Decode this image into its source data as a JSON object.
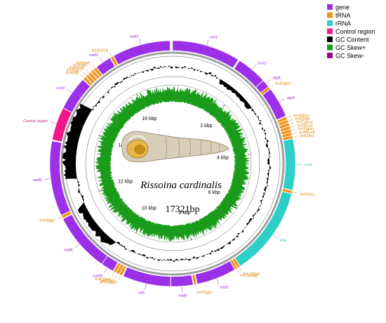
{
  "title": "Rissoina cardinalis",
  "genome_size": "17321bp",
  "total_bp": 17321,
  "colors": {
    "gene": "#9B30E8",
    "tRNA": "#F0941E",
    "rRNA": "#2ECFC7",
    "control": "#F0188A",
    "gc_content": "#000000",
    "gc_skew_plus": "#1A9B1A",
    "gc_skew_minus": "#8E0C8E",
    "label_gene": "#A020F0",
    "label_trna": "#D9860A",
    "label_rrna": "#20B8B0",
    "label_control": "#E0107A"
  },
  "legend": [
    {
      "label": "gene",
      "key": "gene"
    },
    {
      "label": "tRNA",
      "key": "tRNA"
    },
    {
      "label": "rRNA",
      "key": "rRNA"
    },
    {
      "label": "Control region",
      "key": "control"
    },
    {
      "label": "GC Content",
      "key": "gc_content"
    },
    {
      "label": "GC Skew+",
      "key": "gc_skew_plus"
    },
    {
      "label": "GC Skew-",
      "key": "gc_skew_minus"
    }
  ],
  "ticks": [
    "2 kbp",
    "4 kbp",
    "6 kbp",
    "8 kbp",
    "10 kbp",
    "12 kbp",
    "14 kbp",
    "16 kbp"
  ],
  "features": [
    {
      "name": "cox1",
      "type": "gene",
      "start": 0,
      "end": 1550
    },
    {
      "name": "cox2",
      "type": "gene",
      "start": 1590,
      "end": 2280
    },
    {
      "name": "atp8",
      "type": "gene",
      "start": 2290,
      "end": 2460
    },
    {
      "name": "trnD(gtc)",
      "type": "tRNA",
      "start": 2465,
      "end": 2530
    },
    {
      "name": "atp6",
      "type": "gene",
      "start": 2540,
      "end": 3230
    },
    {
      "name": "trnG(tcc)",
      "type": "tRNA",
      "start": 3250,
      "end": 3315
    },
    {
      "name": "trnQ(ttg)",
      "type": "tRNA",
      "start": 3325,
      "end": 3390
    },
    {
      "name": "trnC(gca)",
      "type": "tRNA",
      "start": 3400,
      "end": 3465
    },
    {
      "name": "trnS(tca)",
      "type": "tRNA",
      "start": 3475,
      "end": 3540
    },
    {
      "name": "trnY(gta)",
      "type": "tRNA",
      "start": 3550,
      "end": 3615
    },
    {
      "name": "trnM(cat)",
      "type": "tRNA",
      "start": 3625,
      "end": 3690
    },
    {
      "name": "trnE(ttc)",
      "type": "tRNA",
      "start": 3700,
      "end": 3760
    },
    {
      "name": "rrnS",
      "type": "rRNA",
      "start": 3770,
      "end": 4930
    },
    {
      "name": "trnV(tac)",
      "type": "tRNA",
      "start": 4945,
      "end": 5010
    },
    {
      "name": "rrnL",
      "type": "rRNA",
      "start": 5020,
      "end": 7050
    },
    {
      "name": "trnL2(taa)",
      "type": "tRNA",
      "start": 7060,
      "end": 7120
    },
    {
      "name": "trnL1(tag)",
      "type": "tRNA",
      "start": 7130,
      "end": 7190
    },
    {
      "name": "nad1",
      "type": "gene",
      "start": 7200,
      "end": 8100
    },
    {
      "name": "trnP(tgg)",
      "type": "tRNA",
      "start": 8120,
      "end": 8180
    },
    {
      "name": "nad6",
      "type": "gene",
      "start": 8200,
      "end": 8700
    },
    {
      "name": "cob",
      "type": "gene",
      "start": 8710,
      "end": 9800
    },
    {
      "name": "trnS2(tga)",
      "type": "tRNA",
      "start": 9830,
      "end": 9895
    },
    {
      "name": "trnT(tgt)",
      "type": "tRNA",
      "start": 9905,
      "end": 9970
    },
    {
      "name": "trnF(gaa)",
      "type": "tRNA",
      "start": 9980,
      "end": 10045
    },
    {
      "name": "nad4l",
      "type": "gene",
      "start": 10060,
      "end": 10350
    },
    {
      "name": "nad4",
      "type": "gene",
      "start": 10360,
      "end": 11700
    },
    {
      "name": "trnH(gtg)",
      "type": "tRNA",
      "start": 11720,
      "end": 11790
    },
    {
      "name": "nad5",
      "type": "gene",
      "start": 11800,
      "end": 13500
    },
    {
      "name": "Control region",
      "type": "control",
      "start": 13530,
      "end": 14280
    },
    {
      "name": "cox3",
      "type": "gene",
      "start": 14290,
      "end": 15060
    },
    {
      "name": "trnK(ttt)",
      "type": "tRNA",
      "start": 15080,
      "end": 15145
    },
    {
      "name": "trnA(tgc)",
      "type": "tRNA",
      "start": 15160,
      "end": 15225
    },
    {
      "name": "trnR(tcg)",
      "type": "tRNA",
      "start": 15240,
      "end": 15305
    },
    {
      "name": "trnN(gtt)",
      "type": "tRNA",
      "start": 15320,
      "end": 15385
    },
    {
      "name": "trnI(gat)",
      "type": "tRNA",
      "start": 15400,
      "end": 15465
    },
    {
      "name": "nad3",
      "type": "gene",
      "start": 15480,
      "end": 15840
    },
    {
      "name": "trnS1(tct)",
      "type": "tRNA",
      "start": 15860,
      "end": 15925
    },
    {
      "name": "nad2",
      "type": "gene",
      "start": 15940,
      "end": 17260
    }
  ]
}
